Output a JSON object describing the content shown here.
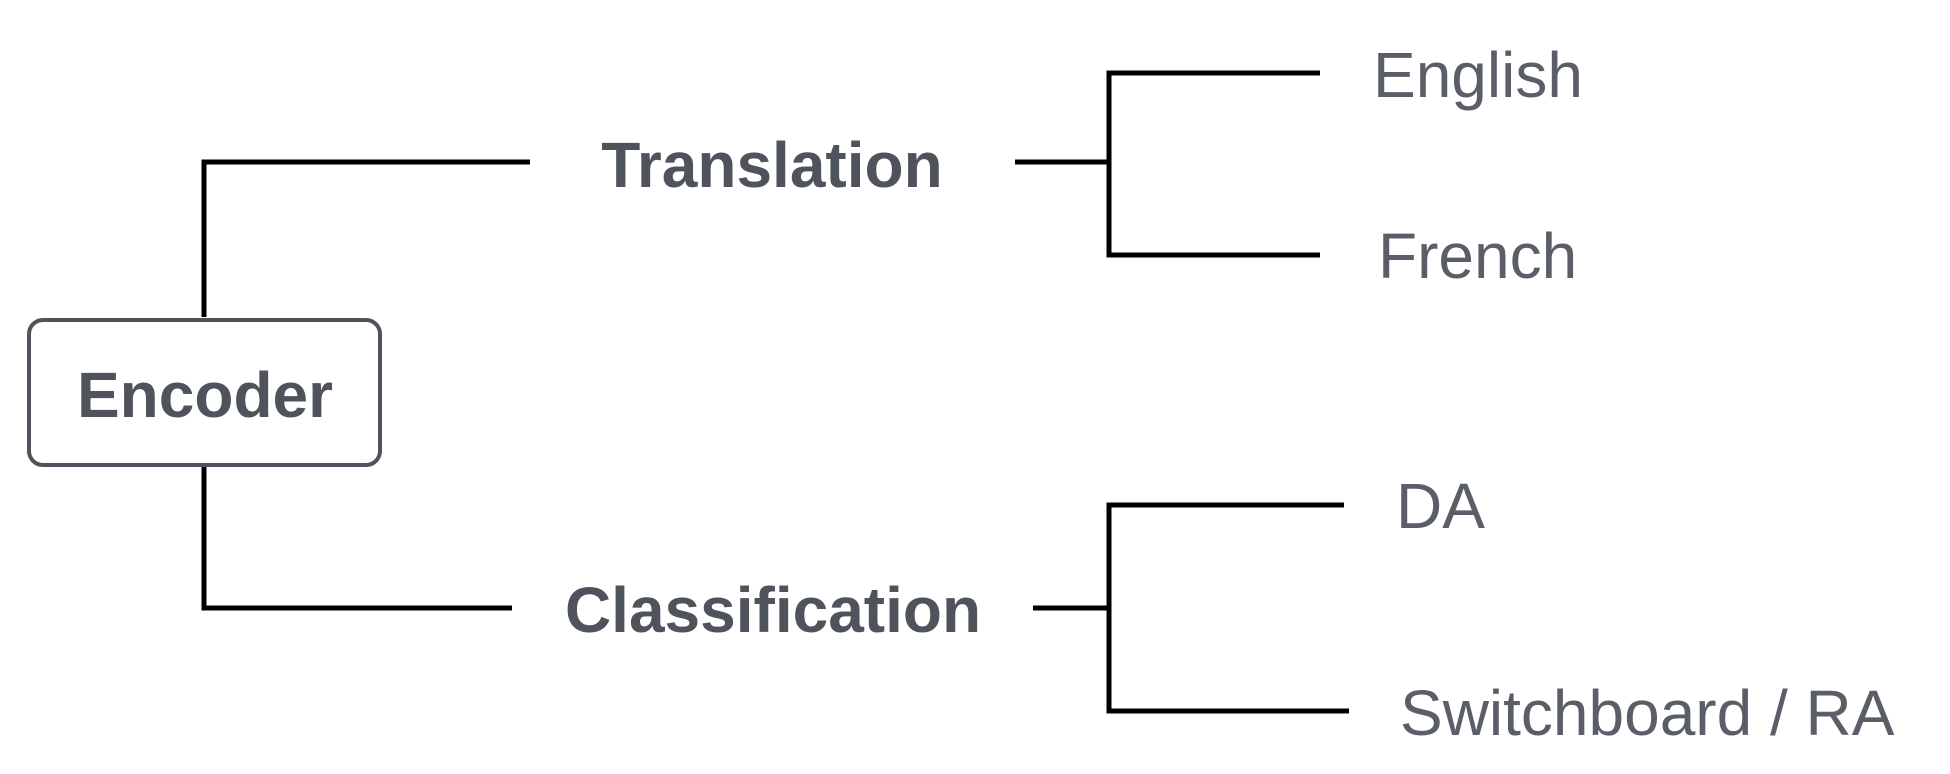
{
  "root": {
    "label": "Encoder"
  },
  "branches": [
    {
      "label": "Translation",
      "leaves": [
        {
          "label": "English"
        },
        {
          "label": "French"
        }
      ]
    },
    {
      "label": "Classification",
      "leaves": [
        {
          "label": "DA"
        },
        {
          "label": "Switchboard / RA"
        }
      ]
    }
  ],
  "colors": {
    "text": "#4f535b",
    "leaf_text": "#5a5f67",
    "lines": "#000000"
  }
}
